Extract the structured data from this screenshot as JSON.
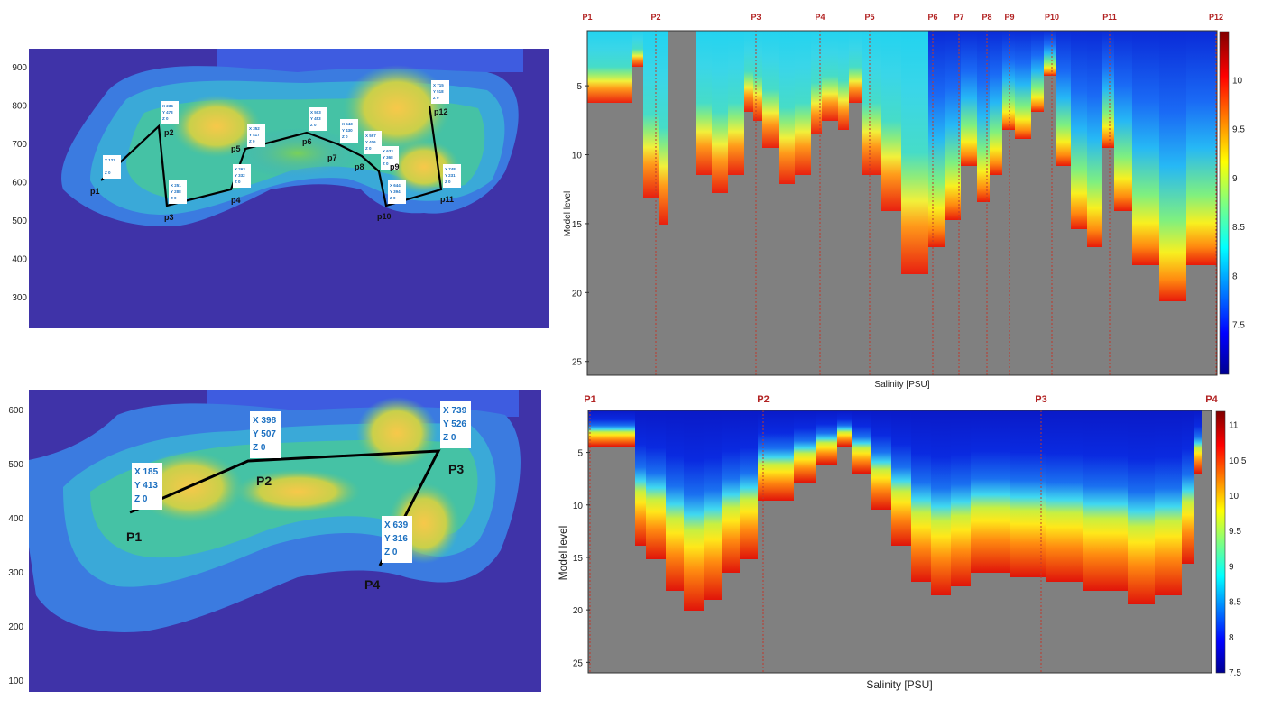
{
  "chart_data": [
    {
      "type": "heatmap",
      "panel": "map-top",
      "ylim": [
        0,
        900
      ],
      "y_ticks": [
        "300",
        "400",
        "500",
        "600",
        "700",
        "800",
        "900"
      ],
      "points": [
        {
          "name": "p1",
          "x": 122,
          "y": null
        },
        {
          "name": "p2",
          "x": 234,
          "y": 473
        },
        {
          "name": "p3",
          "x": 251,
          "y": 288
        },
        {
          "name": "p4",
          "x": 263,
          "y": 332
        },
        {
          "name": "p5",
          "x": 352,
          "y": 417
        },
        {
          "name": "p6",
          "x": 503,
          "y": 453
        },
        {
          "name": "p7",
          "x": 543,
          "y": 430
        },
        {
          "name": "p8",
          "x": 597,
          "y": 406
        },
        {
          "name": "p9",
          "x": 633,
          "y": 368
        },
        {
          "name": "p10",
          "x": 644,
          "y": 394
        },
        {
          "name": "p11",
          "x": 748,
          "y": 231
        },
        {
          "name": "p12",
          "x": 715,
          "y": 518
        }
      ],
      "z_value": 0
    },
    {
      "type": "heatmap",
      "panel": "section-top",
      "xlabel": "Salinity [PSU]",
      "ylabel": "Model level",
      "y_ticks": [
        5,
        10,
        15,
        20,
        25
      ],
      "ylim": [
        1,
        26
      ],
      "colorbar_ticks": [
        7.5,
        8,
        8.5,
        9,
        9.5,
        10
      ],
      "colorbar_range": [
        7,
        10.5
      ],
      "stations": [
        "P1",
        "P2",
        "P3",
        "P4",
        "P5",
        "P6",
        "P7",
        "P8",
        "P9",
        "P10",
        "P11",
        "P12"
      ]
    },
    {
      "type": "heatmap",
      "panel": "map-bottom",
      "ylim": [
        100,
        650
      ],
      "y_ticks": [
        "100",
        "200",
        "300",
        "400",
        "500",
        "600"
      ],
      "points": [
        {
          "name": "P1",
          "x": 185,
          "y": 413
        },
        {
          "name": "P2",
          "x": 398,
          "y": 507
        },
        {
          "name": "P3",
          "x": 739,
          "y": 526
        },
        {
          "name": "P4",
          "x": 639,
          "y": 316
        }
      ],
      "z_value": 0
    },
    {
      "type": "heatmap",
      "panel": "section-bottom",
      "xlabel": "Salinity [PSU]",
      "ylabel": "Model level",
      "y_ticks": [
        5,
        10,
        15,
        20,
        25
      ],
      "ylim": [
        1,
        26
      ],
      "colorbar_ticks": [
        7.5,
        8,
        8.5,
        9,
        9.5,
        10,
        10.5,
        11
      ],
      "colorbar_range": [
        7.5,
        11.2
      ],
      "stations": [
        "P1",
        "P2",
        "P3",
        "P4"
      ]
    }
  ],
  "labels": {
    "top_xlabel": "Salinity [PSU]",
    "bottom_xlabel": "Salinity [PSU]",
    "ylabel": "Model level"
  }
}
